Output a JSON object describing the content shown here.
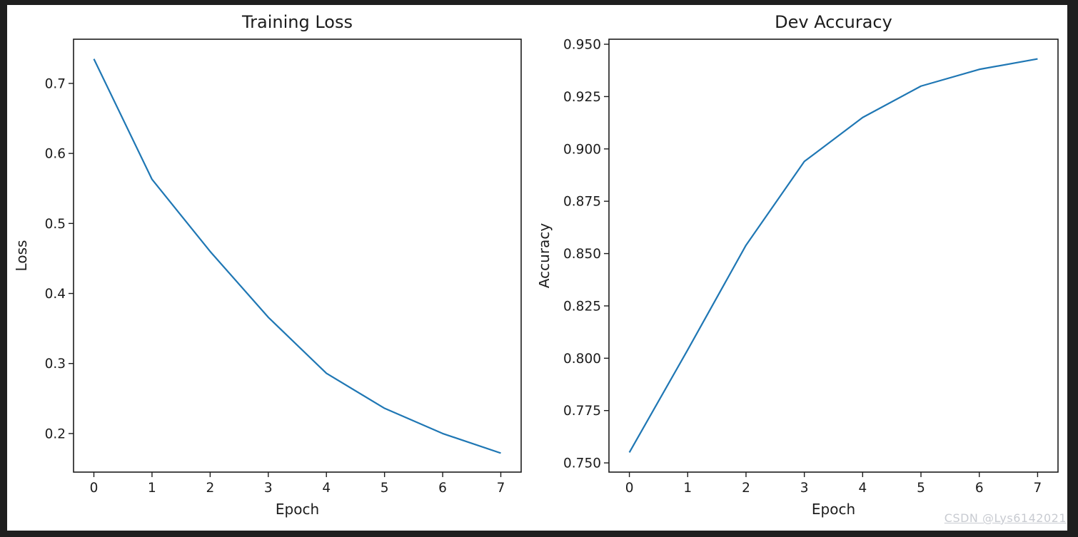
{
  "figure": {
    "background_color": "#ffffff",
    "border_color": "#1f1f1f",
    "text_color": "#1c1c1c",
    "watermark_text": "CSDN @Lys6142021",
    "watermark_color": "#c8cbd1"
  },
  "chart_data": [
    {
      "type": "line",
      "title": "Training Loss",
      "xlabel": "Epoch",
      "ylabel": "Loss",
      "x": [
        0,
        1,
        2,
        3,
        4,
        5,
        6,
        7
      ],
      "series": [
        {
          "name": "training-loss",
          "values": [
            0.735,
            0.563,
            0.46,
            0.366,
            0.286,
            0.236,
            0.2,
            0.172
          ]
        }
      ],
      "xlim": [
        -0.35,
        7.35
      ],
      "ylim": [
        0.1449,
        0.7631
      ],
      "xticks": [
        0,
        1,
        2,
        3,
        4,
        5,
        6,
        7
      ],
      "yticks": [
        0.2,
        0.3,
        0.4,
        0.5,
        0.6,
        0.7
      ],
      "ytick_decimals": 1,
      "line_color": "#1f77b4",
      "grid": false,
      "legend": "none"
    },
    {
      "type": "line",
      "title": "Dev Accuracy",
      "xlabel": "Epoch",
      "ylabel": "Accuracy",
      "x": [
        0,
        1,
        2,
        3,
        4,
        5,
        6,
        7
      ],
      "series": [
        {
          "name": "dev-accuracy",
          "values": [
            0.755,
            0.804,
            0.854,
            0.894,
            0.915,
            0.93,
            0.938,
            0.943
          ]
        }
      ],
      "xlim": [
        -0.35,
        7.35
      ],
      "ylim": [
        0.7456,
        0.9524
      ],
      "xticks": [
        0,
        1,
        2,
        3,
        4,
        5,
        6,
        7
      ],
      "yticks": [
        0.75,
        0.775,
        0.8,
        0.825,
        0.85,
        0.875,
        0.9,
        0.925,
        0.95
      ],
      "ytick_decimals": 3,
      "line_color": "#1f77b4",
      "grid": false,
      "legend": "none"
    }
  ]
}
